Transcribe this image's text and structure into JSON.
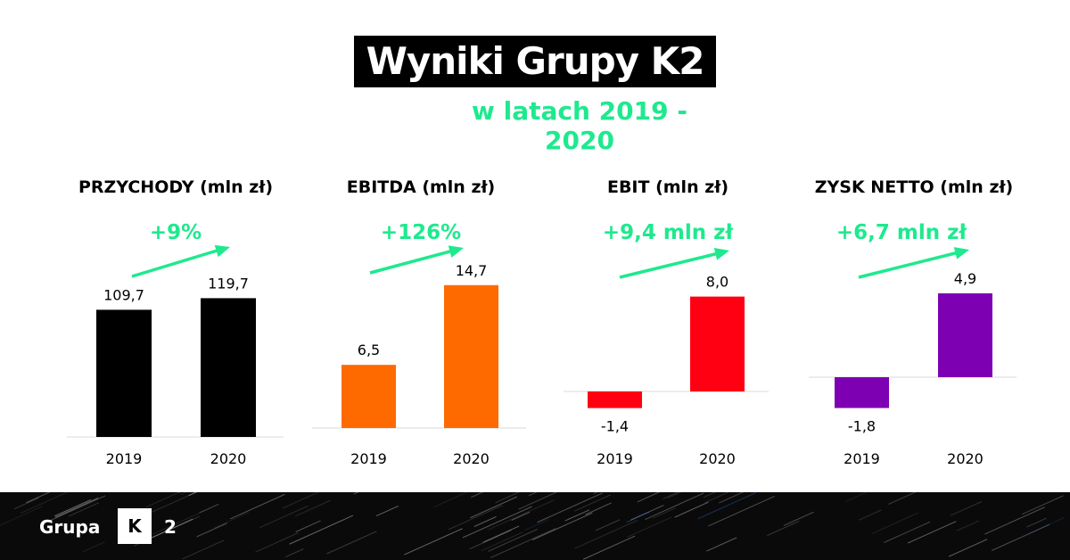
{
  "header": {
    "title": "Wyniki Grupy K2",
    "subtitle": "w latach 2019 - 2020"
  },
  "accent_color": "#1ee98e",
  "chart_data": [
    {
      "type": "bar",
      "title": "PRZYCHODY (mln zł)",
      "change_label": "+9%",
      "categories": [
        "2019",
        "2020"
      ],
      "values": [
        109.7,
        119.7
      ],
      "value_labels": [
        "109,7",
        "119,7"
      ],
      "color": "#000000"
    },
    {
      "type": "bar",
      "title": "EBITDA (mln zł)",
      "change_label": "+126%",
      "categories": [
        "2019",
        "2020"
      ],
      "values": [
        6.5,
        14.7
      ],
      "value_labels": [
        "6,5",
        "14,7"
      ],
      "color": "#ff6a00"
    },
    {
      "type": "bar",
      "title": "EBIT (mln zł)",
      "change_label": "+9,4 mln zł",
      "categories": [
        "2019",
        "2020"
      ],
      "values": [
        -1.4,
        8.0
      ],
      "value_labels": [
        "-1,4",
        "8,0"
      ],
      "color": "#ff0012"
    },
    {
      "type": "bar",
      "title": "ZYSK NETTO (mln zł)",
      "change_label": "+6,7 mln zł",
      "categories": [
        "2019",
        "2020"
      ],
      "values": [
        -1.8,
        4.9
      ],
      "value_labels": [
        "-1,8",
        "4,9"
      ],
      "color": "#7d00b3"
    }
  ],
  "footer": {
    "brand": "Grupa",
    "logo_letter": "K",
    "logo_number": "2"
  }
}
